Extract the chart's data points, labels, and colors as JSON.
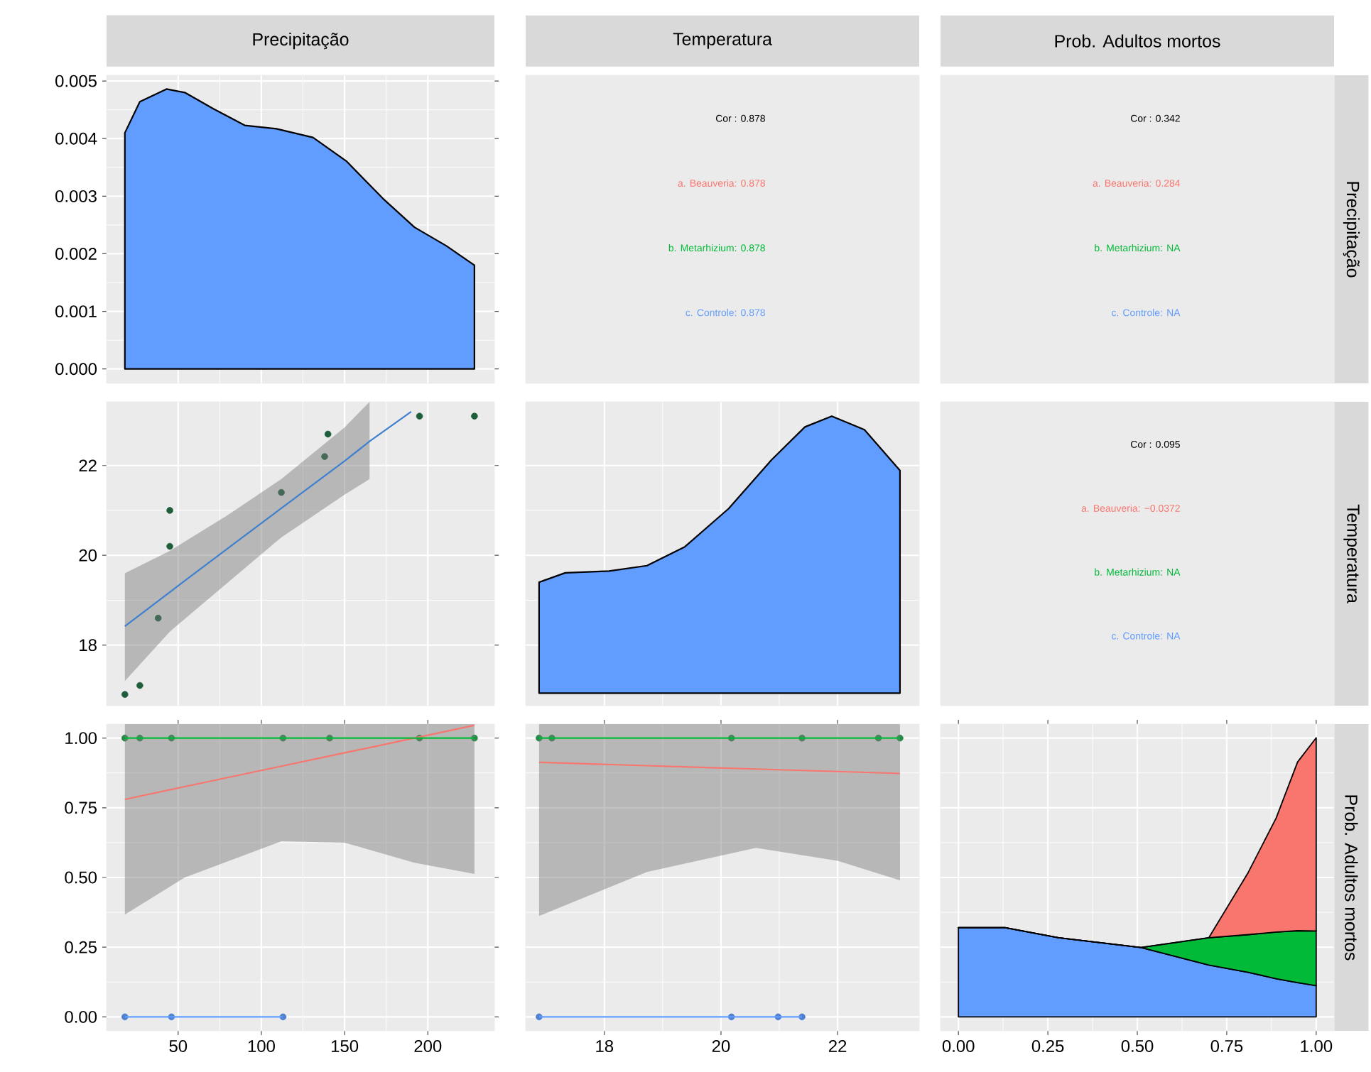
{
  "chart_data": [
    {
      "type": "area",
      "title": "Precipitação",
      "x": [
        18,
        18,
        27,
        43,
        54,
        71,
        90,
        109,
        131,
        151,
        173,
        192,
        211,
        228,
        228
      ],
      "values": [
        0,
        0.0041,
        0.00464,
        0.00486,
        0.0048,
        0.00452,
        0.00423,
        0.00417,
        0.00402,
        0.00361,
        0.00296,
        0.00246,
        0.00214,
        0.0018,
        0
      ],
      "color": "#619CFF",
      "xlim": [
        7,
        240
      ],
      "ylim": [
        -0.00025,
        0.0051
      ],
      "xticks": [
        50,
        100,
        150,
        200
      ],
      "yticks": [
        {
          "value": 0,
          "label": "0.000"
        },
        {
          "value": 0.001,
          "label": "0.001"
        },
        {
          "value": 0.002,
          "label": "0.002"
        },
        {
          "value": 0.003,
          "label": "0.003"
        },
        {
          "value": 0.004,
          "label": "0.004"
        },
        {
          "value": 0.005,
          "label": "0.005"
        }
      ],
      "grid": true,
      "tick_labels": "y"
    },
    {
      "type": "other",
      "title": "Temperatura",
      "annotations": [
        "Cor : 0.878",
        "a. Beauveria: 0.878",
        "b. Metarhizium: 0.878",
        "c. Controle: 0.878"
      ],
      "colors": [
        "#000000",
        "#F8766D",
        "#00BA38",
        "#619CFF"
      ]
    },
    {
      "type": "other",
      "title": "Prob. Adultos mortos",
      "y2label": "Precipitação",
      "annotations": [
        "Cor : 0.342",
        "a. Beauveria: 0.284",
        "b. Metarhizium: NA",
        "c. Controle: NA"
      ],
      "colors": [
        "#000000",
        "#F8766D",
        "#00BA38",
        "#619CFF"
      ]
    },
    {
      "type": "scatter",
      "series": [
        {
          "type": "scatter",
          "marker": "circle",
          "color": "#1E5E3A",
          "x": [
            18,
            27,
            45,
            45,
            38,
            112,
            138,
            140,
            195,
            228
          ],
          "values": [
            16.9,
            17.1,
            21.0,
            20.2,
            18.6,
            21.4,
            22.2,
            22.7,
            23.1,
            23.1
          ]
        },
        {
          "type": "line",
          "color": "#3F7FCF",
          "x": [
            18,
            45,
            80,
            112,
            150,
            165,
            190
          ],
          "values": [
            18.42,
            19.18,
            20.16,
            21.05,
            22.1,
            22.54,
            23.2
          ],
          "lower": [
            17.2,
            18.3,
            19.4,
            20.4,
            21.35,
            21.7,
            null
          ],
          "upper": [
            19.6,
            20.1,
            20.9,
            21.7,
            22.85,
            23.42,
            null
          ]
        }
      ],
      "xlim": [
        7,
        240
      ],
      "ylim": [
        16.65,
        23.42
      ],
      "xticks": [
        50,
        100,
        150,
        200
      ],
      "yticks": [
        18,
        20,
        22
      ],
      "grid": true,
      "tick_labels": "y"
    },
    {
      "type": "area",
      "x": [
        16.88,
        16.88,
        17.33,
        18.08,
        18.73,
        19.38,
        20.13,
        20.87,
        21.44,
        21.9,
        22.46,
        23.07,
        23.07
      ],
      "values": [
        16.93,
        19.4,
        19.61,
        19.65,
        19.77,
        20.19,
        21.04,
        22.13,
        22.86,
        23.1,
        22.8,
        21.89,
        16.93
      ],
      "color": "#619CFF",
      "xlim": [
        16.65,
        23.4
      ],
      "ylim": [
        16.65,
        23.42
      ],
      "xticks": [
        18,
        20,
        22
      ],
      "yticks": [
        18,
        20,
        22
      ],
      "grid": true,
      "tick_labels": false
    },
    {
      "type": "other",
      "y2label": "Temperatura",
      "annotations": [
        "Cor : 0.095",
        "a. Beauveria: −0.0372",
        "b. Metarhizium: NA",
        "c. Controle: NA"
      ],
      "colors": [
        "#000000",
        "#F8766D",
        "#00BA38",
        "#619CFF"
      ]
    },
    {
      "type": "scatter",
      "series": [
        {
          "type": "scatter",
          "marker": "circle",
          "color": "#238B45",
          "x": [
            18,
            27,
            46,
            113,
            141,
            195,
            228
          ],
          "values": [
            1,
            1,
            1,
            1,
            1,
            1,
            1
          ]
        },
        {
          "type": "scatter",
          "marker": "circle",
          "color": "#4F7FCF",
          "x": [
            18,
            46,
            113
          ],
          "values": [
            0,
            0,
            0
          ]
        },
        {
          "type": "line",
          "color": "#F8766D",
          "x": [
            18,
            54,
            112,
            150,
            192,
            228
          ],
          "values": [
            0.78,
            0.826,
            0.899,
            0.947,
            1.0,
            1.046
          ],
          "lower": [
            0.367,
            0.5,
            0.63,
            0.625,
            0.553,
            0.513
          ],
          "upper": [
            1.05,
            1.05,
            1.05,
            1.05,
            1.05,
            1.05
          ]
        },
        {
          "type": "line",
          "color": "#00BA38",
          "x": [
            18,
            228
          ],
          "values": [
            1,
            1
          ]
        },
        {
          "type": "line",
          "color": "#619CFF",
          "x": [
            18,
            113
          ],
          "values": [
            0,
            0
          ]
        }
      ],
      "xlim": [
        7,
        240
      ],
      "ylim": [
        -0.05,
        1.05
      ],
      "xticks": [
        50,
        100,
        150,
        200
      ],
      "yticks": [
        {
          "value": 0,
          "label": "0.00"
        },
        {
          "value": 0.25,
          "label": "0.25"
        },
        {
          "value": 0.5,
          "label": "0.50"
        },
        {
          "value": 0.75,
          "label": "0.75"
        },
        {
          "value": 1,
          "label": "1.00"
        }
      ],
      "grid": true
    },
    {
      "type": "scatter",
      "series": [
        {
          "type": "scatter",
          "marker": "circle",
          "color": "#238B45",
          "x": [
            16.88,
            17.1,
            20.18,
            21.39,
            22.7,
            23.07
          ],
          "values": [
            1,
            1,
            1,
            1,
            1,
            1
          ]
        },
        {
          "type": "scatter",
          "marker": "circle",
          "color": "#4F7FCF",
          "x": [
            16.88,
            20.18,
            20.98,
            21.39
          ],
          "values": [
            0,
            0,
            0,
            0
          ]
        },
        {
          "type": "line",
          "color": "#F8766D",
          "x": [
            16.88,
            18.73,
            20.6,
            22,
            23.07
          ],
          "values": [
            0.913,
            0.901,
            0.889,
            0.88,
            0.873
          ],
          "lower": [
            0.362,
            0.52,
            0.606,
            0.56,
            0.49
          ],
          "upper": [
            1.05,
            1.05,
            1.05,
            1.05,
            1.05
          ]
        },
        {
          "type": "line",
          "color": "#00BA38",
          "x": [
            16.88,
            23.07
          ],
          "values": [
            1,
            1
          ]
        },
        {
          "type": "line",
          "color": "#619CFF",
          "x": [
            16.88,
            21.39
          ],
          "values": [
            0,
            0
          ]
        }
      ],
      "xlim": [
        16.65,
        23.4
      ],
      "ylim": [
        -0.05,
        1.05
      ],
      "xticks": [
        18,
        20,
        22
      ],
      "yticks": [
        0,
        0.25,
        0.5,
        0.75,
        1
      ],
      "grid": true,
      "tick_labels": "x"
    },
    {
      "type": "area",
      "stacked": true,
      "y2label": "Prob. Adultos mortos",
      "x": [
        0,
        0.13,
        0.28,
        0.51,
        0.7,
        0.81,
        0.888,
        0.948,
        1.0
      ],
      "series": [
        {
          "color": "#619CFF",
          "values": [
            0.32,
            0.32,
            0.284,
            0.249,
            0.186,
            0.16,
            0.137,
            0.123,
            0.112
          ]
        },
        {
          "color": "#00BA38",
          "values": [
            0,
            0,
            0,
            0,
            0.098,
            0.135,
            0.167,
            0.186,
            0.196
          ]
        },
        {
          "color": "#F8766D",
          "values": [
            0,
            0,
            0,
            0,
            0,
            0.223,
            0.409,
            0.605,
            0.693
          ]
        }
      ],
      "xlim": [
        -0.05,
        1.05
      ],
      "ylim": [
        -0.05,
        1.05
      ],
      "xticks": [
        {
          "value": 0,
          "label": "0.00"
        },
        {
          "value": 0.25,
          "label": "0.25"
        },
        {
          "value": 0.5,
          "label": "0.50"
        },
        {
          "value": 0.75,
          "label": "0.75"
        },
        {
          "value": 1,
          "label": "1.00"
        }
      ],
      "yticks": [
        0,
        0.25,
        0.5,
        0.75,
        1
      ],
      "grid": true,
      "tick_labels": "x"
    }
  ]
}
